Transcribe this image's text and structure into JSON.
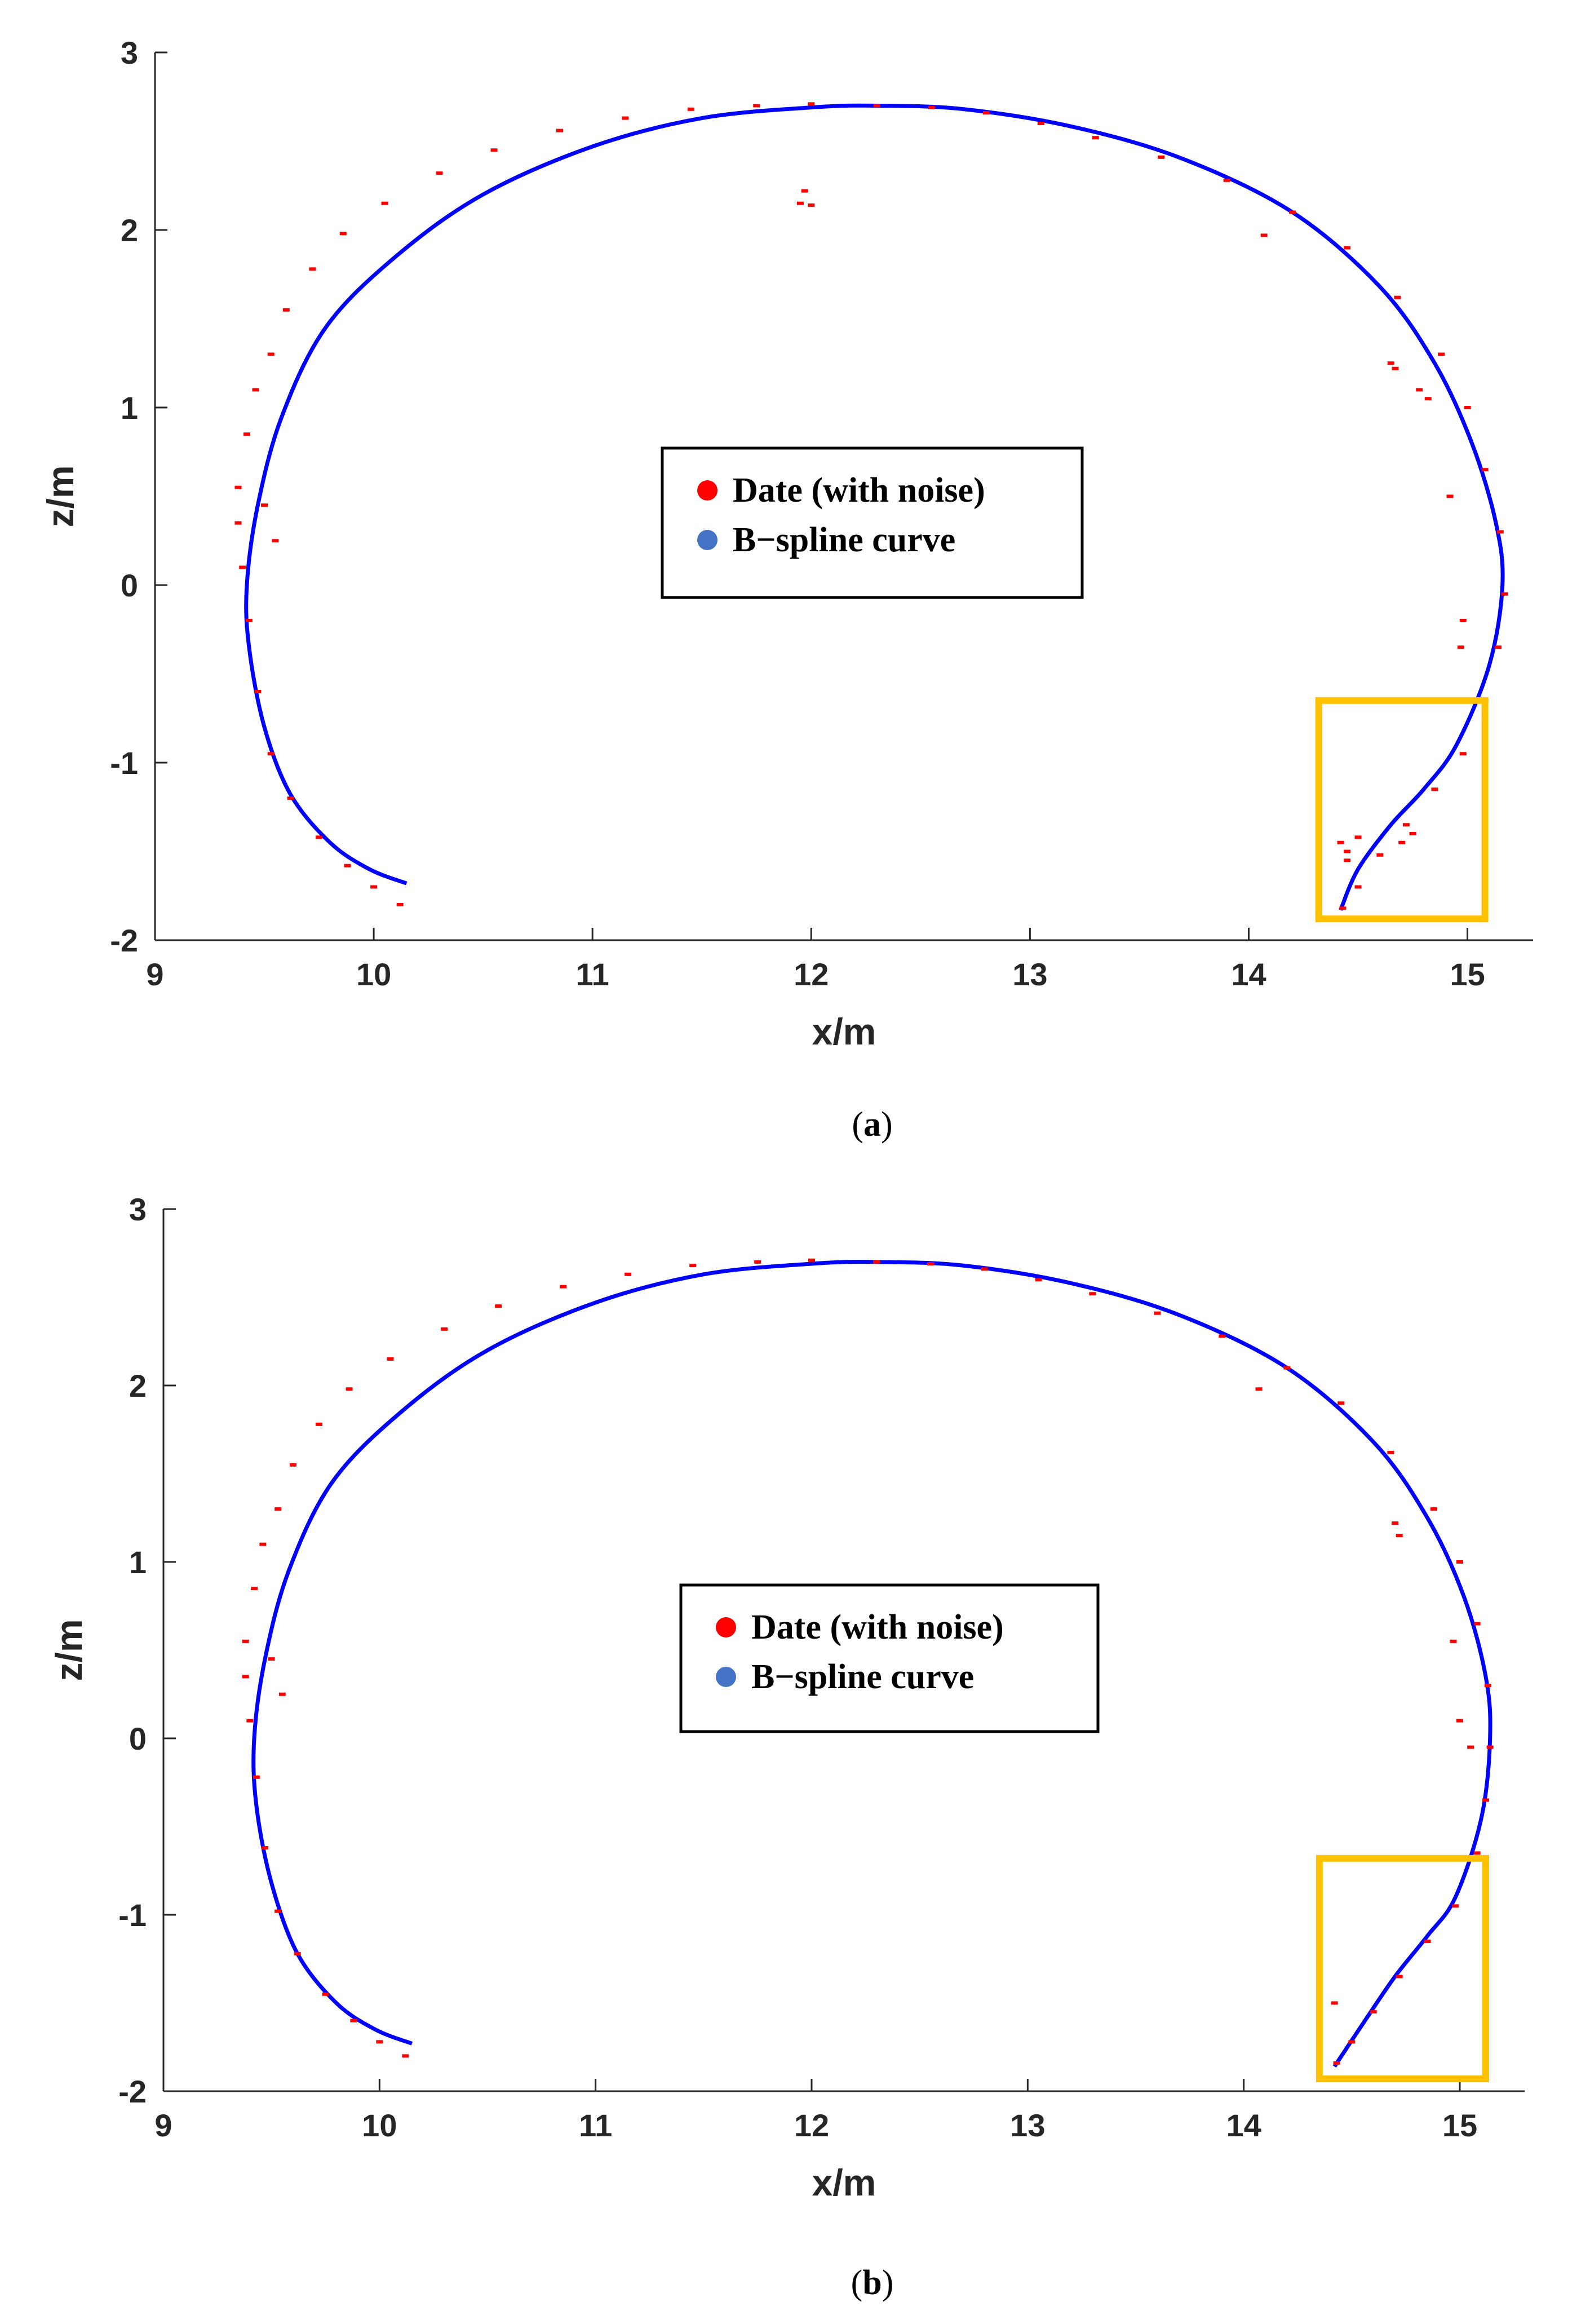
{
  "colors": {
    "noise_points": "#ff0000",
    "spline_line": "#0000ff",
    "legend_spline_marker": "#4472c4",
    "highlight_box": "#ffc000",
    "axis": "#262626"
  },
  "chart_data": [
    {
      "type": "scatter",
      "panel": "a",
      "caption": {
        "open": "(",
        "letter": "a",
        "close": ")"
      },
      "xlabel": "x/m",
      "ylabel": "z/m",
      "xlim": [
        9,
        15.3
      ],
      "ylim": [
        -2,
        3
      ],
      "xticks": [
        9,
        10,
        11,
        12,
        13,
        14,
        15
      ],
      "yticks": [
        -2,
        -1,
        0,
        1,
        2,
        3
      ],
      "grid": false,
      "legend": {
        "placement": "center",
        "entries": [
          "Date (with noise)",
          "B−spline curve"
        ]
      },
      "highlight_box": {
        "x": [
          14.32,
          15.08
        ],
        "y": [
          -1.88,
          -0.65
        ]
      },
      "series": [
        {
          "name": "B−spline curve",
          "kind": "line",
          "x": [
            10.15,
            9.98,
            9.8,
            9.62,
            9.5,
            9.43,
            9.42,
            9.47,
            9.58,
            9.78,
            10.1,
            10.5,
            11.0,
            11.5,
            12.0,
            12.3,
            12.7,
            13.2,
            13.7,
            14.2,
            14.6,
            14.85,
            15.02,
            15.13,
            15.16,
            15.1,
            14.95,
            14.8,
            14.65,
            14.5,
            14.42
          ],
          "y": [
            -1.68,
            -1.6,
            -1.45,
            -1.18,
            -0.8,
            -0.35,
            0.0,
            0.45,
            0.95,
            1.45,
            1.85,
            2.2,
            2.47,
            2.63,
            2.69,
            2.7,
            2.68,
            2.58,
            2.4,
            2.1,
            1.68,
            1.25,
            0.8,
            0.35,
            0.0,
            -0.45,
            -0.9,
            -1.15,
            -1.35,
            -1.6,
            -1.83
          ]
        },
        {
          "name": "Date (with noise)",
          "kind": "points",
          "x": [
            10.12,
            10.0,
            9.88,
            9.75,
            9.62,
            9.53,
            9.47,
            9.43,
            9.4,
            9.38,
            9.38,
            9.42,
            9.46,
            9.53,
            9.6,
            9.72,
            9.86,
            10.05,
            10.3,
            10.55,
            10.85,
            11.15,
            11.45,
            11.75,
            12.0,
            12.3,
            12.55,
            12.8,
            13.05,
            13.3,
            13.6,
            13.9,
            14.2,
            14.45,
            14.68,
            14.88,
            15.0,
            15.08,
            15.15,
            15.17,
            15.14,
            15.08,
            14.98,
            14.85,
            14.72,
            14.6,
            14.5,
            14.43,
            11.95,
            11.97,
            12.0,
            14.07,
            14.65,
            14.67,
            14.78,
            14.82,
            14.92,
            14.98,
            14.97,
            9.5,
            9.55,
            14.42,
            14.45,
            14.5,
            14.45,
            14.7,
            14.75
          ],
          "y": [
            -1.8,
            -1.7,
            -1.58,
            -1.42,
            -1.2,
            -0.95,
            -0.6,
            -0.2,
            0.1,
            0.35,
            0.55,
            0.85,
            1.1,
            1.3,
            1.55,
            1.78,
            1.98,
            2.15,
            2.32,
            2.45,
            2.56,
            2.63,
            2.68,
            2.7,
            2.71,
            2.7,
            2.69,
            2.66,
            2.6,
            2.52,
            2.41,
            2.28,
            2.1,
            1.9,
            1.62,
            1.3,
            1.0,
            0.65,
            0.3,
            -0.05,
            -0.35,
            -0.65,
            -0.95,
            -1.15,
            -1.35,
            -1.52,
            -1.7,
            -1.82,
            2.15,
            2.22,
            2.14,
            1.97,
            1.25,
            1.22,
            1.1,
            1.05,
            0.5,
            -0.2,
            -0.35,
            0.45,
            0.25,
            -1.45,
            -1.5,
            -1.42,
            -1.55,
            -1.45,
            -1.4
          ]
        }
      ]
    },
    {
      "type": "scatter",
      "panel": "b",
      "caption": {
        "open": "(",
        "letter": "b",
        "close": ")"
      },
      "xlabel": "x/m",
      "ylabel": "z/m",
      "xlim": [
        9,
        15.3
      ],
      "ylim": [
        -2,
        3
      ],
      "xticks": [
        9,
        10,
        11,
        12,
        13,
        14,
        15
      ],
      "yticks": [
        -2,
        -1,
        0,
        1,
        2,
        3
      ],
      "grid": false,
      "legend": {
        "placement": "center",
        "entries": [
          "Date (with noise)",
          "B−spline curve"
        ]
      },
      "highlight_box": {
        "x": [
          14.35,
          15.12
        ],
        "y": [
          -1.93,
          -0.68
        ]
      },
      "series": [
        {
          "name": "B−spline curve",
          "kind": "line",
          "x": [
            10.15,
            9.98,
            9.8,
            9.62,
            9.5,
            9.43,
            9.42,
            9.47,
            9.58,
            9.78,
            10.1,
            10.5,
            11.0,
            11.5,
            12.0,
            12.3,
            12.7,
            13.2,
            13.7,
            14.2,
            14.6,
            14.85,
            15.02,
            15.12,
            15.14,
            15.1,
            14.98,
            14.85,
            14.7,
            14.55,
            14.42
          ],
          "y": [
            -1.73,
            -1.65,
            -1.5,
            -1.22,
            -0.82,
            -0.38,
            0.0,
            0.45,
            0.95,
            1.45,
            1.85,
            2.2,
            2.47,
            2.63,
            2.69,
            2.7,
            2.68,
            2.58,
            2.4,
            2.1,
            1.68,
            1.25,
            0.8,
            0.35,
            0.0,
            -0.45,
            -0.9,
            -1.12,
            -1.35,
            -1.62,
            -1.86
          ]
        },
        {
          "name": "Date (with noise)",
          "kind": "points",
          "x": [
            10.12,
            10.0,
            9.88,
            9.75,
            9.62,
            9.53,
            9.47,
            9.43,
            9.4,
            9.38,
            9.38,
            9.42,
            9.46,
            9.53,
            9.6,
            9.72,
            9.86,
            10.05,
            10.3,
            10.55,
            10.85,
            11.15,
            11.45,
            11.75,
            12.0,
            12.3,
            12.55,
            12.8,
            13.05,
            13.3,
            13.6,
            13.9,
            14.2,
            14.45,
            14.68,
            14.88,
            15.0,
            15.08,
            15.13,
            15.14,
            15.12,
            15.08,
            14.98,
            14.85,
            14.72,
            14.6,
            14.5,
            14.43,
            14.07,
            14.7,
            14.72,
            14.97,
            15.0,
            15.05,
            9.5,
            9.55,
            14.42
          ],
          "y": [
            -1.8,
            -1.72,
            -1.6,
            -1.45,
            -1.22,
            -0.98,
            -0.62,
            -0.22,
            0.1,
            0.35,
            0.55,
            0.85,
            1.1,
            1.3,
            1.55,
            1.78,
            1.98,
            2.15,
            2.32,
            2.45,
            2.56,
            2.63,
            2.68,
            2.7,
            2.71,
            2.7,
            2.69,
            2.66,
            2.6,
            2.52,
            2.41,
            2.28,
            2.1,
            1.9,
            1.62,
            1.3,
            1.0,
            0.65,
            0.3,
            -0.05,
            -0.35,
            -0.65,
            -0.95,
            -1.15,
            -1.35,
            -1.55,
            -1.72,
            -1.84,
            1.98,
            1.22,
            1.15,
            0.55,
            0.1,
            -0.05,
            0.45,
            0.25,
            -1.5
          ]
        }
      ]
    }
  ]
}
